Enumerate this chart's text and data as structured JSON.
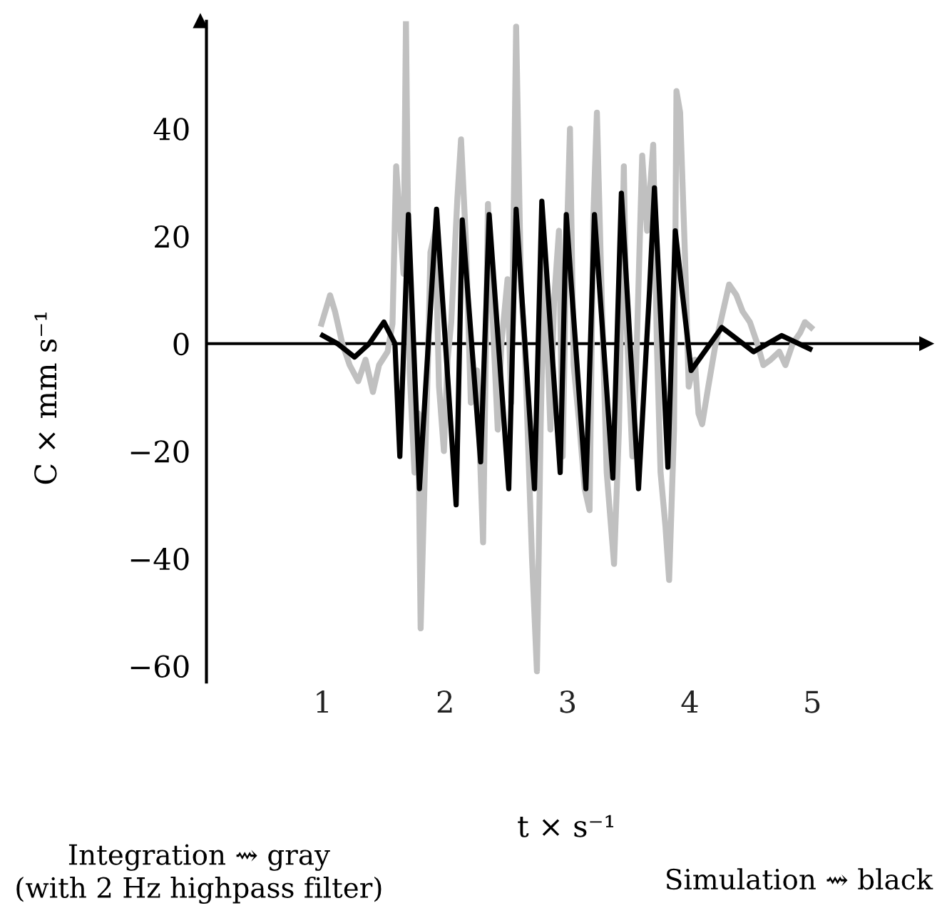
{
  "chart_data": {
    "type": "line",
    "xlabel": "t × s⁻¹",
    "ylabel": "C × mm s⁻¹",
    "annotations": [
      "Integration ⇝ gray",
      "(with 2 Hz highpass filter)",
      "Simulation ⇝ black"
    ],
    "xlim": [
      0.05,
      5.93
    ],
    "ylim": [
      -63,
      60
    ],
    "xticks": [
      1,
      2,
      3,
      4,
      5
    ],
    "yticks": [
      {
        "value": -60,
        "label": "−60"
      },
      {
        "value": -40,
        "label": "−40"
      },
      {
        "value": -20,
        "label": "−20"
      },
      0,
      20,
      40
    ],
    "grid": false,
    "ref_lines": [
      {
        "axis": "y",
        "value": 0,
        "color": "#000000"
      }
    ],
    "legend": false,
    "marker": "none",
    "line_style": "solid",
    "series": [
      {
        "color": "#c0c0c0",
        "x": [
          0.99,
          1.06,
          1.1,
          1.16,
          1.22,
          1.29,
          1.35,
          1.41,
          1.46,
          1.53,
          1.57,
          1.6,
          1.63,
          1.66,
          1.68,
          1.71,
          1.75,
          1.78,
          1.8,
          1.84,
          1.86,
          1.88,
          1.92,
          1.95,
          1.99,
          2.02,
          2.05,
          2.1,
          2.13,
          2.17,
          2.21,
          2.26,
          2.31,
          2.35,
          2.37,
          2.43,
          2.46,
          2.51,
          2.54,
          2.58,
          2.62,
          2.65,
          2.71,
          2.75,
          2.78,
          2.81,
          2.86,
          2.89,
          2.93,
          2.96,
          2.99,
          3.02,
          3.05,
          3.1,
          3.14,
          3.18,
          3.21,
          3.24,
          3.28,
          3.32,
          3.38,
          3.42,
          3.46,
          3.48,
          3.53,
          3.56,
          3.61,
          3.65,
          3.7,
          3.73,
          3.76,
          3.8,
          3.83,
          3.87,
          3.89,
          3.92,
          3.96,
          3.99,
          4.04,
          4.07,
          4.1,
          4.15,
          4.21,
          4.26,
          4.32,
          4.38,
          4.43,
          4.49,
          4.55,
          4.6,
          4.66,
          4.73,
          4.78,
          4.84,
          4.9,
          4.94,
          4.99
        ],
        "values": [
          3.7,
          9,
          6,
          0,
          -4,
          -7,
          -3,
          -9,
          -4,
          -1.5,
          3.7,
          33,
          23,
          13,
          60,
          -5,
          -24,
          -13,
          -53,
          -19,
          -3,
          17,
          21,
          -8,
          -20,
          -3,
          4,
          27,
          38,
          19,
          -11,
          -5,
          -37,
          26,
          14,
          -16,
          0,
          12,
          -11,
          59,
          10,
          0,
          -40,
          -61,
          -16,
          16,
          -16,
          8,
          21,
          -21,
          16,
          40,
          -4,
          -16,
          -27,
          -31,
          23,
          43,
          8,
          -24,
          -41,
          -16,
          33,
          5,
          -21,
          -5,
          35,
          21,
          37,
          0,
          -24,
          -34,
          -44,
          -16,
          47,
          43,
          16,
          -8,
          -3,
          -13,
          -15,
          -8,
          0,
          5,
          11,
          9,
          6,
          4,
          0,
          -4,
          -3,
          -1.5,
          -4,
          0,
          2,
          4,
          3
        ]
      },
      {
        "color": "#000000",
        "x": [
          1.0,
          1.12,
          1.26,
          1.38,
          1.5,
          1.59,
          1.63,
          1.7,
          1.79,
          1.93,
          2.09,
          2.14,
          2.29,
          2.36,
          2.52,
          2.58,
          2.73,
          2.79,
          2.94,
          2.99,
          3.15,
          3.22,
          3.37,
          3.44,
          3.58,
          3.67,
          3.71,
          3.82,
          3.88,
          4.01,
          4.26,
          4.52,
          4.75,
          4.98
        ],
        "values": [
          1.5,
          0,
          -2.5,
          0,
          4,
          0,
          -21,
          24,
          -27,
          25,
          -30,
          23,
          -22,
          24,
          -27,
          25,
          -27,
          26.5,
          -24,
          24,
          -27,
          24,
          -25,
          28,
          -27,
          10,
          29,
          -23,
          21,
          -5,
          3,
          -1.5,
          1.5,
          -1
        ]
      }
    ]
  }
}
